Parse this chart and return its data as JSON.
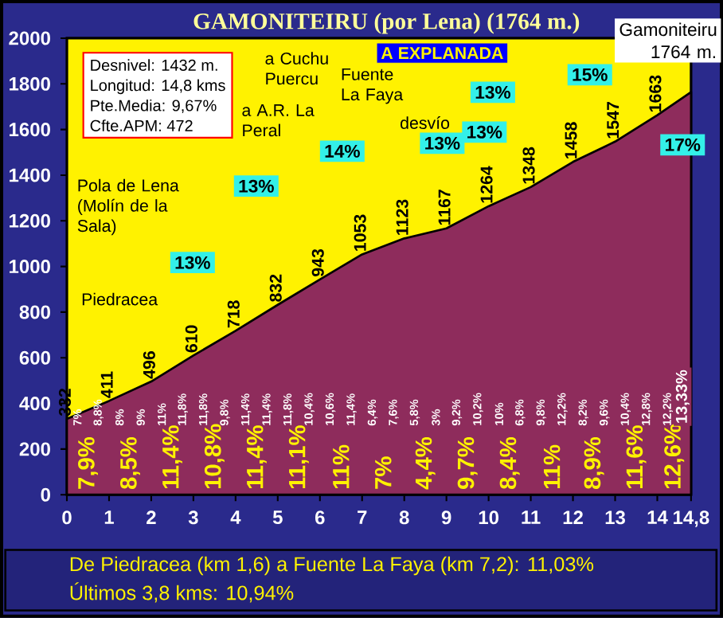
{
  "chart_data": {
    "type": "area",
    "title": "GAMONITEIRU (por Lena) (1764 m.)",
    "x": [
      0,
      1,
      2,
      3,
      4,
      5,
      6,
      7,
      8,
      9,
      10,
      11,
      12,
      13,
      14,
      14.8
    ],
    "values": [
      332,
      411,
      496,
      610,
      718,
      832,
      943,
      1053,
      1123,
      1167,
      1264,
      1348,
      1458,
      1547,
      1663,
      1764
    ],
    "value_labels": [
      "332",
      "411",
      "496",
      "610",
      "718",
      "832",
      "943",
      "1053",
      "1123",
      "1167",
      "1264",
      "1348",
      "1458",
      "1547",
      "1663",
      null
    ],
    "color": "#8e2c5c",
    "xlim": [
      0,
      14.8
    ],
    "xticks": [
      0,
      1,
      2,
      3,
      4,
      5,
      6,
      7,
      8,
      9,
      10,
      11,
      12,
      13,
      14,
      {
        "value": 14.8,
        "label": "14,8"
      }
    ],
    "ylim": [
      0,
      2000
    ],
    "yticks": [
      0,
      200,
      400,
      600,
      800,
      1000,
      1200,
      1400,
      1600,
      1800,
      2000
    ],
    "annotations": [
      "Desnivel: 1432 m.",
      "Longitud: 14,8 kms",
      "Pte.Media: 9,67%",
      "Cfte.APM: 472",
      "De Piedracea (km 1,6) a Fuente La Faya (km 7,2): 11,03%",
      "Últimos 3,8 kms:   10,94%",
      "Pola de Lena (Molín de la Sala)",
      "Piedracea",
      "a A.R. La Peral",
      "a Cuchu Puercu",
      "Fuente La Faya",
      "desvío",
      "A EXPLANADA",
      "Gamoniteiru 1764 m.",
      {
        "text": "13%",
        "x": 2.98,
        "y": 1017
      },
      {
        "text": "13%",
        "x": 4.49,
        "y": 1352
      },
      {
        "text": "14%",
        "x": 6.53,
        "y": 1505
      },
      {
        "text": "13%",
        "x": 8.9,
        "y": 1540
      },
      {
        "text": "13%",
        "x": 9.9,
        "y": 1589
      },
      {
        "text": "13%",
        "x": 10.1,
        "y": 1763
      },
      {
        "text": "15%",
        "x": 12.4,
        "y": 1840
      },
      {
        "text": "17%",
        "x": 14.6,
        "y": 1533
      },
      {
        "text": "7,9%",
        "x": 0.5,
        "y": 20
      },
      {
        "text": "8,5%",
        "x": 1.5,
        "y": 20
      },
      {
        "text": "11,4%",
        "x": 2.5,
        "y": 20
      },
      {
        "text": "10,8%",
        "x": 3.5,
        "y": 20
      },
      {
        "text": "11,4%",
        "x": 4.5,
        "y": 20
      },
      {
        "text": "11,1%",
        "x": 5.5,
        "y": 20
      },
      {
        "text": "11%",
        "x": 6.5,
        "y": 20
      },
      {
        "text": "7%",
        "x": 7.5,
        "y": 20
      },
      {
        "text": "4,4%",
        "x": 8.5,
        "y": 20
      },
      {
        "text": "9,7%",
        "x": 9.5,
        "y": 20
      },
      {
        "text": "8,4%",
        "x": 10.5,
        "y": 20
      },
      {
        "text": "11%",
        "x": 11.5,
        "y": 20
      },
      {
        "text": "8,9%",
        "x": 12.5,
        "y": 20
      },
      {
        "text": "11,6%",
        "x": 13.5,
        "y": 20
      },
      {
        "text": "12,6%",
        "x": 14.4,
        "y": 20
      },
      "7%",
      "8,8%",
      "8%",
      "9%",
      "11%",
      "11,8%",
      "11,8%",
      "9,8%",
      "11,4%",
      "11,4%",
      "11,8%",
      "10,4%",
      "10,6%",
      "11,4%",
      "6,4%",
      "7,6%",
      "5,8%",
      "3%",
      "9,2%",
      "10,2%",
      "10%",
      "6,8%",
      "9,8%",
      "12,2%",
      "8,2%",
      "9,6%",
      "10,4%",
      "12,8%",
      "12,2%",
      "13,33%"
    ]
  }
}
